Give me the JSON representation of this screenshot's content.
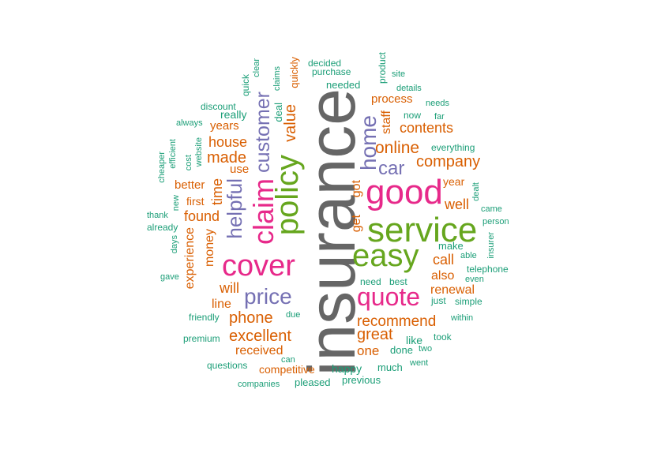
{
  "palette": {
    "gray": "#666666",
    "magenta": "#e7298a",
    "green": "#66a61e",
    "purple": "#7570b3",
    "orange": "#d95f02",
    "teal": "#1b9e77"
  },
  "words": [
    "insurance",
    "good",
    "service",
    "easy",
    "policy",
    "cover",
    "claim",
    "quote",
    "price",
    "home",
    "helpful",
    "customer",
    "car",
    "online",
    "company",
    "contents",
    "value",
    "recommend",
    "great",
    "excellent",
    "phone",
    "made",
    "house",
    "time",
    "found",
    "call",
    "will",
    "renewal",
    "also",
    "well",
    "process",
    "staff",
    "years",
    "got",
    "get",
    "received",
    "one",
    "experience",
    "money",
    "line",
    "use",
    "better",
    "first",
    "year",
    "competitive",
    "make",
    "quickly",
    "deal",
    "really",
    "happy",
    "need",
    "best",
    "just",
    "simple",
    "like",
    "done",
    "much",
    "pleased",
    "previous",
    "quick",
    "clear",
    "claims",
    "decided",
    "purchase",
    "needed",
    "product",
    "site",
    "details",
    "needs",
    "now",
    "far",
    "everything",
    "dealt",
    "came",
    "person",
    "insurer",
    "able",
    "telephone",
    "even",
    "within",
    "took",
    "two",
    "went",
    "due",
    "can",
    "questions",
    "companies",
    "premium",
    "friendly",
    "gave",
    "days",
    "already",
    "thank",
    "new",
    "cheaper",
    "efficient",
    "cost",
    "website",
    "always",
    "discount"
  ]
}
